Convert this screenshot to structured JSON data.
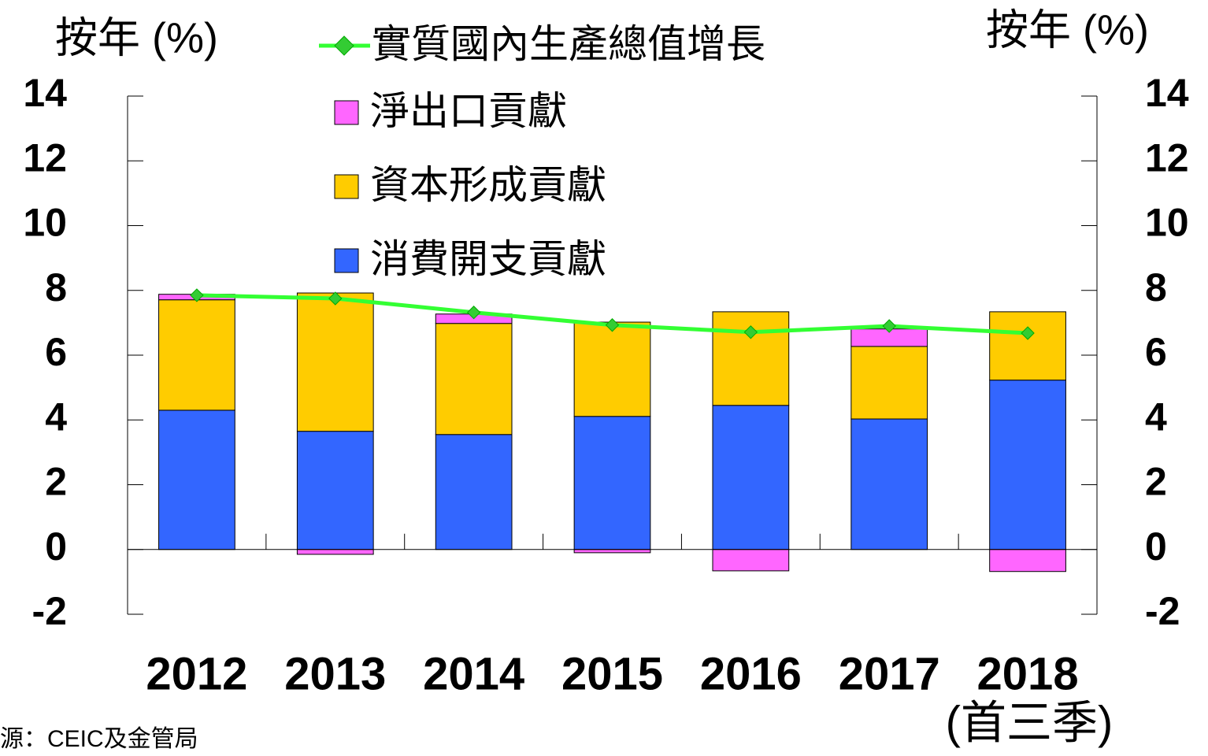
{
  "chart_data": {
    "type": "bar",
    "stacked": true,
    "y_label": "按年 (%)",
    "y2_label": "按年 (%)",
    "categories": [
      "2012",
      "2013",
      "2014",
      "2015",
      "2016",
      "2017",
      "2018"
    ],
    "category_note": "(首三季)",
    "source": "源：CEIC及金管局",
    "series": [
      {
        "name": "消費開支貢獻",
        "color": "#3366ff",
        "values": [
          4.3,
          3.65,
          3.55,
          4.11,
          4.45,
          4.03,
          5.23
        ]
      },
      {
        "name": "資本形成貢獻",
        "color": "#ffcc00",
        "values": [
          3.41,
          4.27,
          3.43,
          2.91,
          2.89,
          2.24,
          2.11
        ]
      },
      {
        "name": "淨出口貢獻",
        "color": "#ff66ff",
        "values": [
          0.17,
          -0.15,
          0.29,
          -0.1,
          -0.66,
          0.54,
          -0.68
        ]
      },
      {
        "name": "實質國內生產總值增長",
        "type": "line",
        "color": "#33ff33",
        "marker_color": "#33cc33",
        "values": [
          7.85,
          7.75,
          7.32,
          6.93,
          6.71,
          6.9,
          6.68
        ]
      }
    ],
    "ylim": [
      -2,
      14
    ],
    "yticks": [
      -2,
      0,
      2,
      4,
      6,
      8,
      10,
      12,
      14
    ],
    "y2lim": [
      -2,
      14
    ],
    "y2ticks": [
      -2,
      0,
      2,
      4,
      6,
      8,
      10,
      12,
      14
    ]
  }
}
